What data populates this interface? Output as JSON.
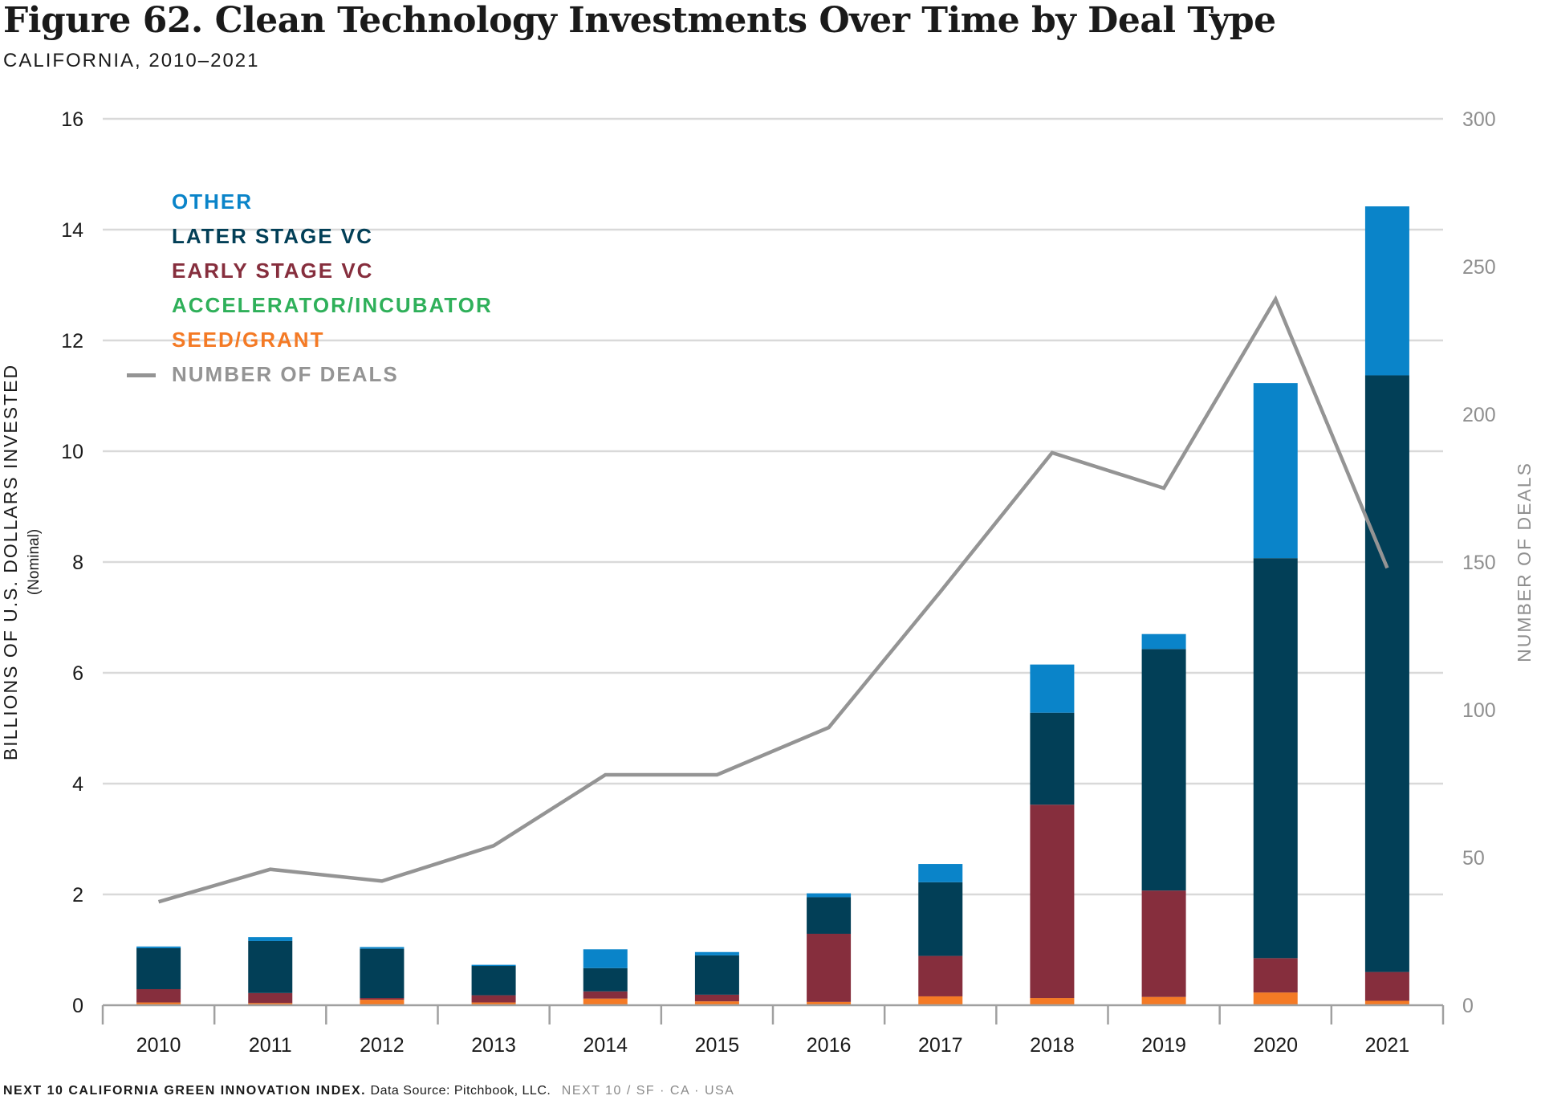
{
  "title": "Figure 62. Clean Technology Investments Over Time by Deal Type",
  "subtitle": "CALIFORNIA, 2010–2021",
  "footer": {
    "bold": "NEXT 10 CALIFORNIA GREEN INNOVATION INDEX.",
    "source": "Data Source: Pitchbook, LLC.",
    "muted": "NEXT 10  /  SF · CA · USA"
  },
  "legend": [
    {
      "label": "OTHER",
      "color": "#0a84c9"
    },
    {
      "label": "LATER STAGE VC",
      "color": "#023f57"
    },
    {
      "label": "EARLY STAGE VC",
      "color": "#862e3d"
    },
    {
      "label": "ACCELERATOR/INCUBATOR",
      "color": "#2fb05a"
    },
    {
      "label": "SEED/GRANT",
      "color": "#f47a25"
    },
    {
      "label": "NUMBER OF DEALS",
      "color": "#949494"
    }
  ],
  "chart_data": {
    "type": "bar",
    "stacked": true,
    "categories": [
      "2010",
      "2011",
      "2012",
      "2013",
      "2014",
      "2015",
      "2016",
      "2017",
      "2018",
      "2019",
      "2020",
      "2021"
    ],
    "series": [
      {
        "name": "SEED/GRANT",
        "color": "#f47a25",
        "values": [
          0.05,
          0.04,
          0.1,
          0.05,
          0.12,
          0.07,
          0.06,
          0.16,
          0.13,
          0.15,
          0.23,
          0.08
        ]
      },
      {
        "name": "ACCELERATOR/INCUBATOR",
        "color": "#2fb05a",
        "values": [
          0,
          0,
          0,
          0,
          0,
          0,
          0,
          0,
          0,
          0,
          0,
          0
        ]
      },
      {
        "name": "EARLY STAGE VC",
        "color": "#862e3d",
        "values": [
          0.24,
          0.18,
          0.03,
          0.13,
          0.13,
          0.12,
          1.23,
          0.73,
          3.49,
          1.92,
          0.62,
          0.52
        ]
      },
      {
        "name": "LATER STAGE VC",
        "color": "#023f57",
        "values": [
          0.74,
          0.94,
          0.89,
          0.53,
          0.42,
          0.71,
          0.66,
          1.33,
          1.66,
          4.36,
          7.22,
          10.77
        ]
      },
      {
        "name": "OTHER",
        "color": "#0a84c9",
        "values": [
          0.03,
          0.07,
          0.03,
          0.02,
          0.34,
          0.06,
          0.07,
          0.33,
          0.87,
          0.27,
          3.16,
          3.05
        ]
      }
    ],
    "line": {
      "name": "NUMBER OF DEALS",
      "color": "#949494",
      "axis": "right",
      "values": [
        35,
        46,
        42,
        54,
        78,
        78,
        94,
        140,
        187,
        175,
        239,
        148
      ]
    },
    "ylabel": "BILLIONS OF U.S. DOLLARS INVESTED",
    "ylabel_sub": "(Nominal)",
    "ylim": [
      0,
      16
    ],
    "yticks": [
      0,
      2,
      4,
      6,
      8,
      10,
      12,
      14,
      16
    ],
    "y2label": "NUMBER OF DEALS",
    "y2lim": [
      0,
      300
    ],
    "y2ticks": [
      0,
      50,
      100,
      150,
      200,
      250,
      300
    ],
    "grid": true,
    "legend_position": "top-left"
  }
}
